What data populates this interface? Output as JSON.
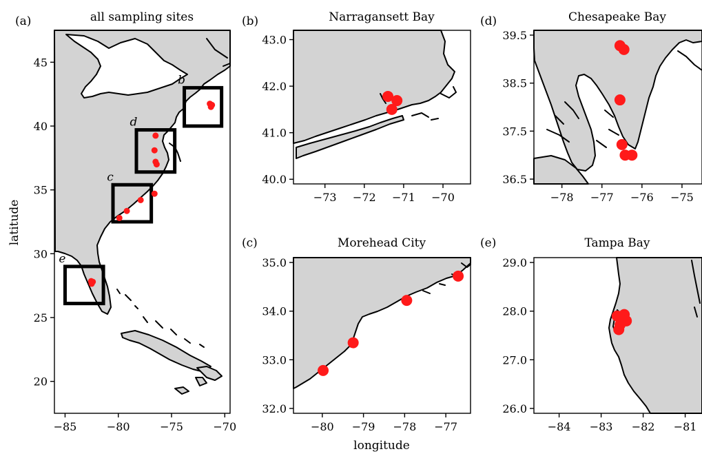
{
  "figure": {
    "xlabel": "longitude",
    "ylabel": "latitude"
  },
  "colors": {
    "land": "#d3d3d3",
    "water": "#ffffff",
    "site": "#ff1a1a",
    "outline": "#000000"
  },
  "chart_data": [
    {
      "id": "a",
      "type": "scatter",
      "panel_letter": "(a)",
      "title": "all sampling sites",
      "xlim": [
        -86,
        -69.5
      ],
      "ylim": [
        17.5,
        47.5
      ],
      "x_ticks": [
        "-85",
        "-80",
        "-75",
        "-70"
      ],
      "x_tick_values": [
        -85,
        -80,
        -75,
        -70
      ],
      "y_ticks": [
        "20",
        "25",
        "30",
        "35",
        "40",
        "45"
      ],
      "y_tick_values": [
        20,
        25,
        30,
        35,
        40,
        45
      ],
      "sites": [
        {
          "lon": -71.4,
          "lat": 41.75
        },
        {
          "lon": -71.2,
          "lat": 41.65
        },
        {
          "lon": -71.3,
          "lat": 41.5
        },
        {
          "lon": -76.5,
          "lat": 39.25
        },
        {
          "lon": -76.6,
          "lat": 38.1
        },
        {
          "lon": -76.5,
          "lat": 37.2
        },
        {
          "lon": -76.4,
          "lat": 37.0
        },
        {
          "lon": -76.6,
          "lat": 34.7
        },
        {
          "lon": -77.9,
          "lat": 34.2
        },
        {
          "lon": -79.2,
          "lat": 33.35
        },
        {
          "lon": -79.9,
          "lat": 32.8
        },
        {
          "lon": -82.55,
          "lat": 27.85
        },
        {
          "lon": -82.4,
          "lat": 27.8
        },
        {
          "lon": -82.5,
          "lat": 27.65
        }
      ],
      "inset_boxes": [
        {
          "label": "b",
          "lon": [
            -73.8,
            -70.3
          ],
          "lat": [
            40.0,
            43.0
          ]
        },
        {
          "label": "d",
          "lon": [
            -78.3,
            -74.7
          ],
          "lat": [
            36.4,
            39.7
          ]
        },
        {
          "label": "c",
          "lon": [
            -80.5,
            -76.9
          ],
          "lat": [
            32.5,
            35.4
          ]
        },
        {
          "label": "e",
          "lon": [
            -85.0,
            -81.4
          ],
          "lat": [
            26.1,
            29.0
          ]
        }
      ]
    },
    {
      "id": "b",
      "type": "scatter",
      "panel_letter": "(b)",
      "title": "Narragansett Bay",
      "xlim": [
        -73.8,
        -69.3
      ],
      "ylim": [
        39.9,
        43.2
      ],
      "x_ticks": [
        "-73",
        "-72",
        "-71",
        "-70"
      ],
      "x_tick_values": [
        -73,
        -72,
        -71,
        -70
      ],
      "y_ticks": [
        "40.0",
        "41.0",
        "42.0",
        "43.0"
      ],
      "y_tick_values": [
        40,
        41,
        42,
        43
      ],
      "sites": [
        {
          "lon": -71.4,
          "lat": 41.78
        },
        {
          "lon": -71.17,
          "lat": 41.69
        },
        {
          "lon": -71.3,
          "lat": 41.5
        }
      ]
    },
    {
      "id": "d",
      "type": "scatter",
      "panel_letter": "(d)",
      "title": "Chesapeake Bay",
      "xlim": [
        -78.7,
        -74.5
      ],
      "ylim": [
        36.4,
        39.6
      ],
      "x_ticks": [
        "-78",
        "-77",
        "-76",
        "-75"
      ],
      "x_tick_values": [
        -78,
        -77,
        -76,
        -75
      ],
      "y_ticks": [
        "36.5",
        "37.5",
        "38.5",
        "39.5"
      ],
      "y_tick_values": [
        36.5,
        37.5,
        38.5,
        39.5
      ],
      "sites": [
        {
          "lon": -76.55,
          "lat": 39.28
        },
        {
          "lon": -76.45,
          "lat": 39.2
        },
        {
          "lon": -76.55,
          "lat": 38.15
        },
        {
          "lon": -76.5,
          "lat": 37.22
        },
        {
          "lon": -76.42,
          "lat": 37.0
        },
        {
          "lon": -76.25,
          "lat": 37.0
        }
      ]
    },
    {
      "id": "c",
      "type": "scatter",
      "panel_letter": "(c)",
      "title": "Morehead City",
      "xlim": [
        -80.7,
        -76.4
      ],
      "ylim": [
        31.9,
        35.1
      ],
      "x_ticks": [
        "-80",
        "-79",
        "-78",
        "-77"
      ],
      "x_tick_values": [
        -80,
        -79,
        -78,
        -77
      ],
      "y_ticks": [
        "32.0",
        "33.0",
        "34.0",
        "35.0"
      ],
      "y_tick_values": [
        32,
        33,
        34,
        35
      ],
      "sites": [
        {
          "lon": -76.7,
          "lat": 34.72
        },
        {
          "lon": -77.95,
          "lat": 34.22
        },
        {
          "lon": -79.25,
          "lat": 33.35
        },
        {
          "lon": -79.98,
          "lat": 32.78
        }
      ]
    },
    {
      "id": "e",
      "type": "scatter",
      "panel_letter": "(e)",
      "title": "Tampa Bay",
      "xlim": [
        -84.6,
        -80.6
      ],
      "ylim": [
        25.9,
        29.1
      ],
      "x_ticks": [
        "-84",
        "-83",
        "-82",
        "-81"
      ],
      "x_tick_values": [
        -84,
        -83,
        -82,
        -81
      ],
      "y_ticks": [
        "26.0",
        "27.0",
        "28.0",
        "29.0"
      ],
      "y_tick_values": [
        26,
        27,
        28,
        29
      ],
      "sites": [
        {
          "lon": -82.62,
          "lat": 27.9
        },
        {
          "lon": -82.45,
          "lat": 27.93
        },
        {
          "lon": -82.4,
          "lat": 27.8
        },
        {
          "lon": -82.55,
          "lat": 27.72
        },
        {
          "lon": -82.58,
          "lat": 27.62
        }
      ]
    }
  ]
}
